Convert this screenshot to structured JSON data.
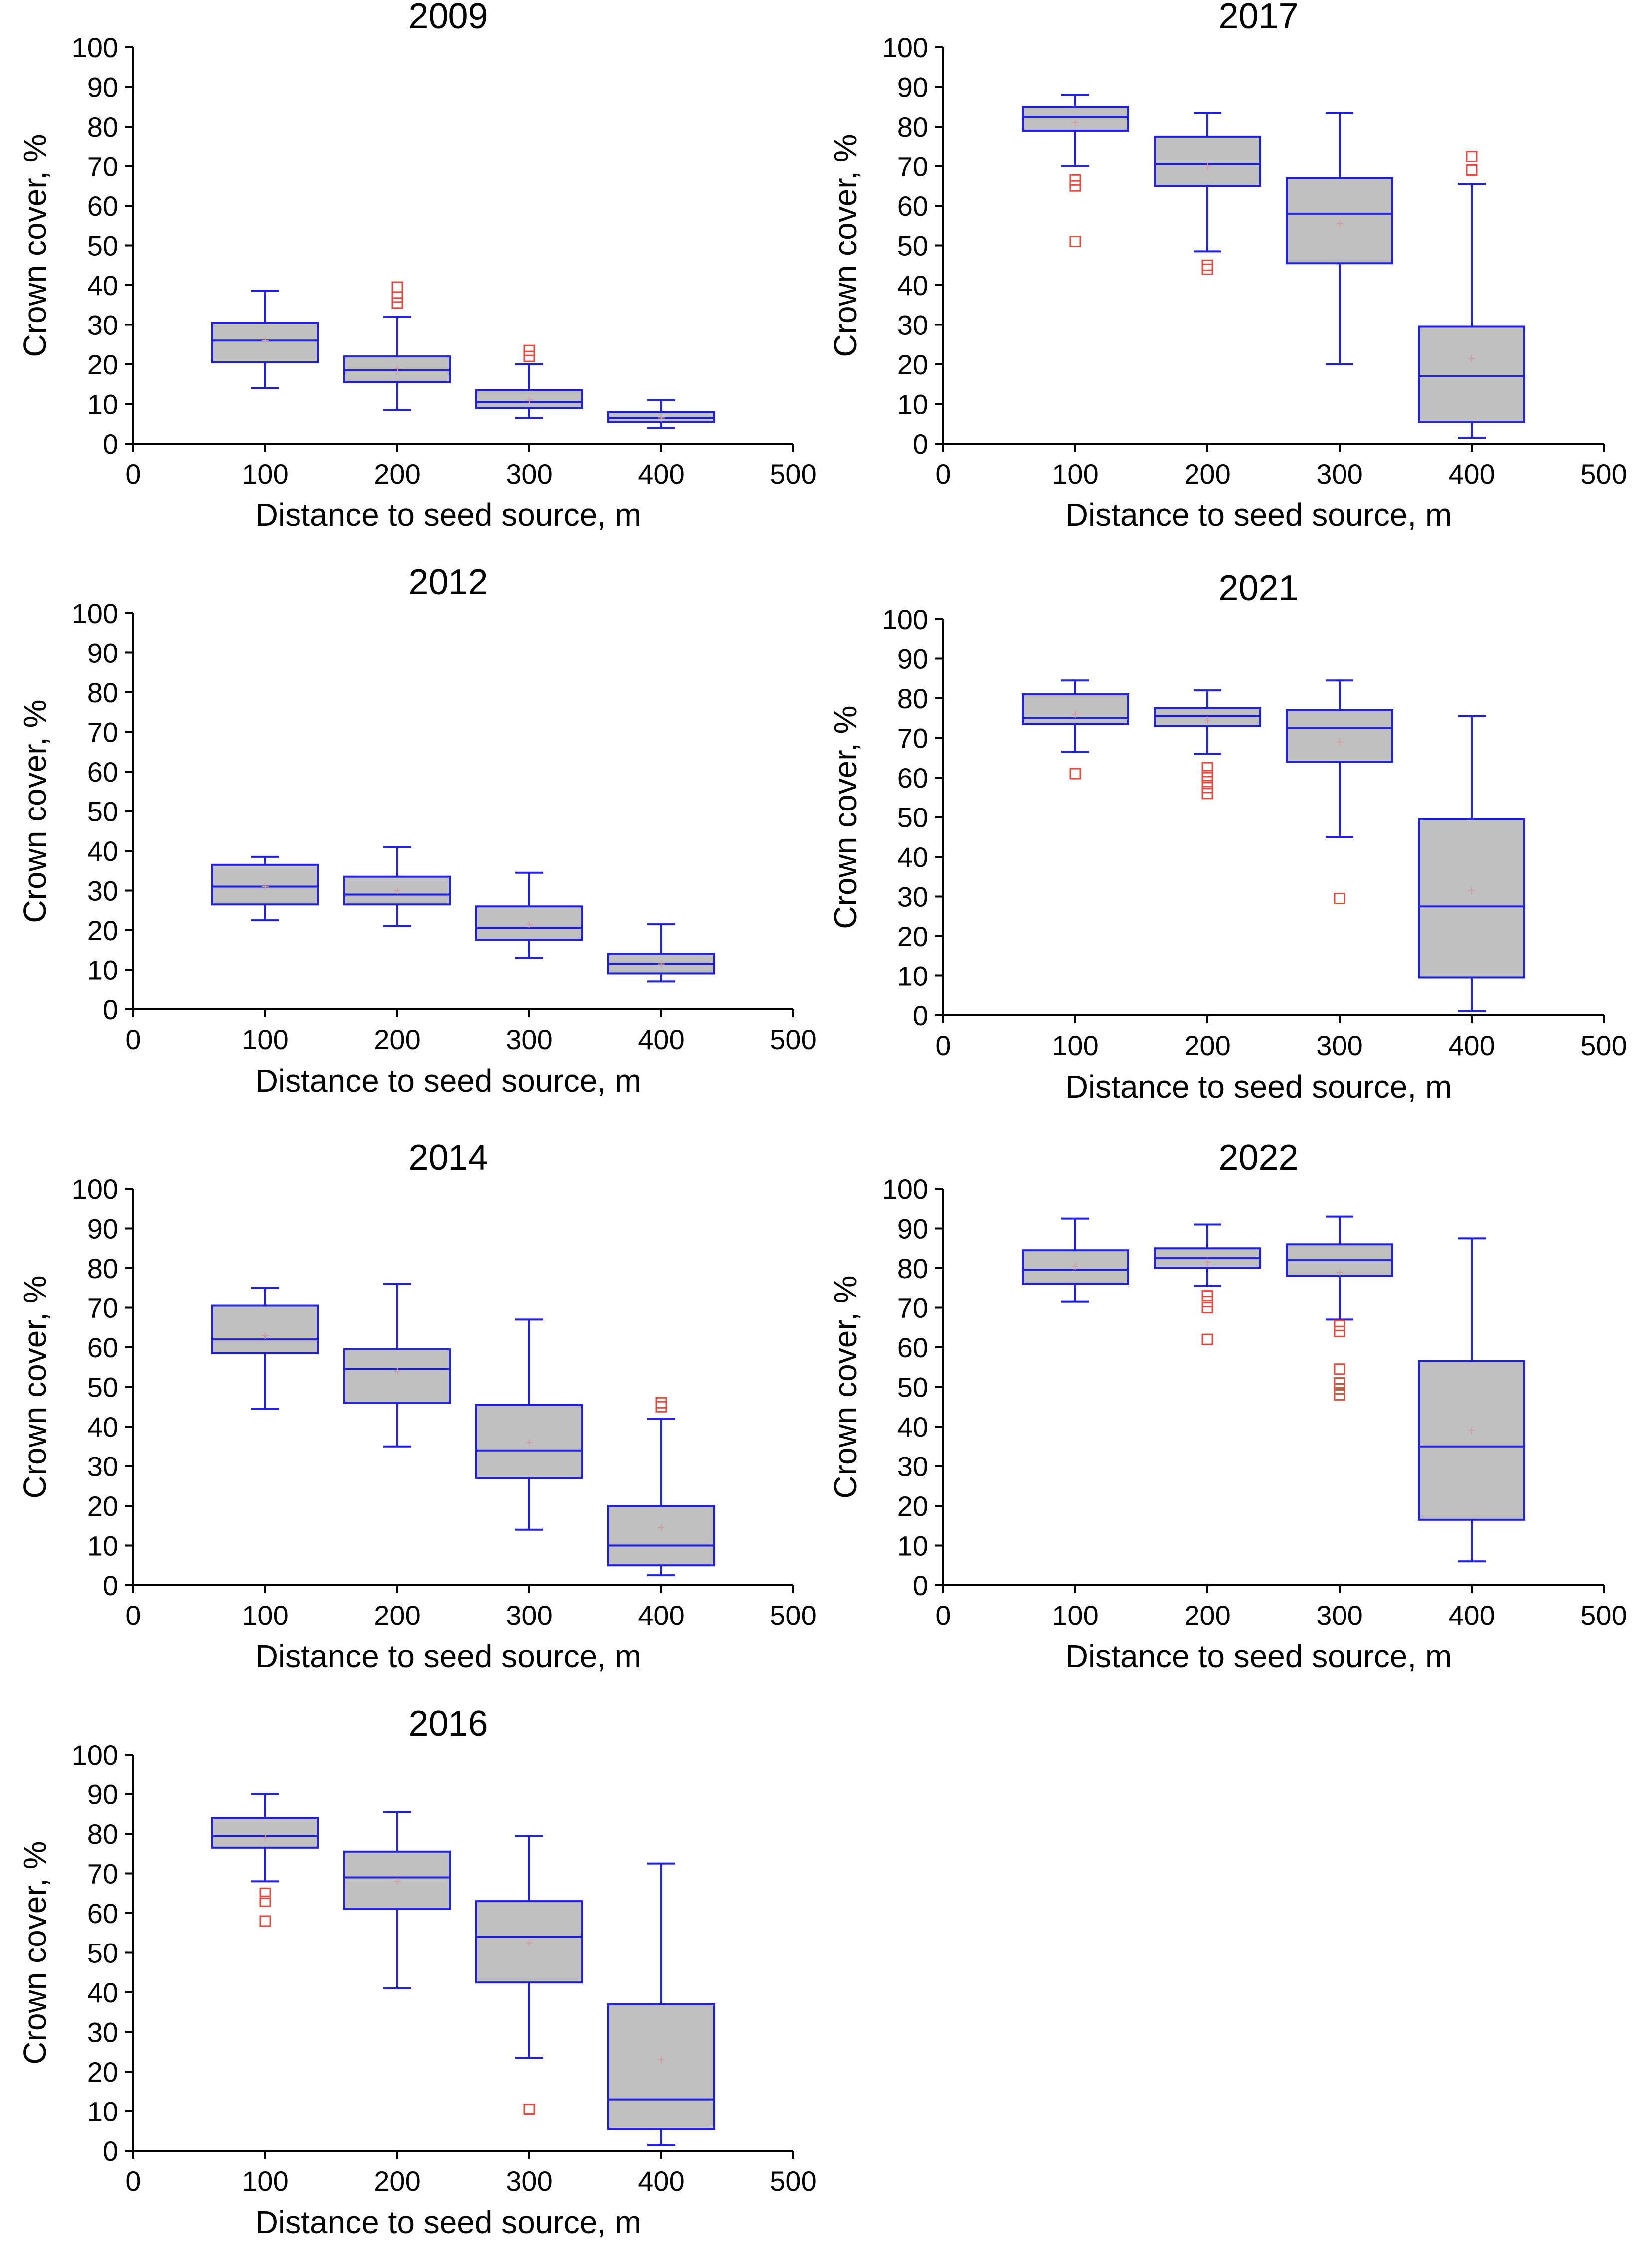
{
  "colors": {
    "box_fill": "#c0c0c0",
    "box_stroke": "#1f1fe6",
    "outlier": "#e8473c",
    "mean_marker": "#d0a0a0",
    "axis": "#000000",
    "text": "#000000"
  },
  "chart_data": [
    {
      "type": "box",
      "title": "2009",
      "xlabel": "Distance to seed source, m",
      "ylabel": "Crown cover, %",
      "xlim": [
        0,
        500
      ],
      "ylim": [
        0,
        100
      ],
      "xticks": [
        0,
        100,
        200,
        300,
        400,
        500
      ],
      "yticks": [
        0,
        10,
        20,
        30,
        40,
        50,
        60,
        70,
        80,
        90,
        100
      ],
      "grid": false,
      "boxes": [
        {
          "x": 100,
          "whisker_low": 14,
          "q1": 20.5,
          "median": 26,
          "q3": 30.5,
          "whisker_high": 38.5,
          "mean": 26,
          "outliers": []
        },
        {
          "x": 200,
          "whisker_low": 8.5,
          "q1": 15.5,
          "median": 18.5,
          "q3": 22,
          "whisker_high": 32,
          "mean": 19,
          "outliers": [
            35.5,
            37,
            39.5
          ]
        },
        {
          "x": 300,
          "whisker_low": 6.5,
          "q1": 9,
          "median": 10.5,
          "q3": 13.5,
          "whisker_high": 20,
          "mean": 11,
          "outliers": [
            22,
            23.5
          ]
        },
        {
          "x": 400,
          "whisker_low": 4,
          "q1": 5.5,
          "median": 6.5,
          "q3": 8,
          "whisker_high": 11,
          "mean": 6.5,
          "outliers": []
        }
      ]
    },
    {
      "type": "box",
      "title": "2017",
      "xlabel": "Distance to seed source, m",
      "ylabel": "Crown cover, %",
      "xlim": [
        0,
        500
      ],
      "ylim": [
        0,
        100
      ],
      "xticks": [
        0,
        100,
        200,
        300,
        400,
        500
      ],
      "yticks": [
        0,
        10,
        20,
        30,
        40,
        50,
        60,
        70,
        80,
        90,
        100
      ],
      "grid": false,
      "boxes": [
        {
          "x": 100,
          "whisker_low": 70,
          "q1": 79,
          "median": 82.5,
          "q3": 85,
          "whisker_high": 88,
          "mean": 81,
          "outliers": [
            51,
            65,
            66.5
          ]
        },
        {
          "x": 200,
          "whisker_low": 48.5,
          "q1": 65,
          "median": 70.5,
          "q3": 77.5,
          "whisker_high": 83.5,
          "mean": 70,
          "outliers": [
            44,
            45
          ]
        },
        {
          "x": 300,
          "whisker_low": 20,
          "q1": 45.5,
          "median": 58,
          "q3": 67,
          "whisker_high": 83.5,
          "mean": 55.5,
          "outliers": []
        },
        {
          "x": 400,
          "whisker_low": 1.5,
          "q1": 5.5,
          "median": 17,
          "q3": 29.5,
          "whisker_high": 65.5,
          "mean": 21.5,
          "outliers": [
            69,
            72.5
          ]
        }
      ]
    },
    {
      "type": "box",
      "title": "2012",
      "xlabel": "Distance to seed source, m",
      "ylabel": "Crown cover, %",
      "xlim": [
        0,
        500
      ],
      "ylim": [
        0,
        100
      ],
      "xticks": [
        0,
        100,
        200,
        300,
        400,
        500
      ],
      "yticks": [
        0,
        10,
        20,
        30,
        40,
        50,
        60,
        70,
        80,
        90,
        100
      ],
      "grid": false,
      "boxes": [
        {
          "x": 100,
          "whisker_low": 22.5,
          "q1": 26.5,
          "median": 31,
          "q3": 36.5,
          "whisker_high": 38.5,
          "mean": 31,
          "outliers": []
        },
        {
          "x": 200,
          "whisker_low": 21,
          "q1": 26.5,
          "median": 29,
          "q3": 33.5,
          "whisker_high": 41,
          "mean": 30,
          "outliers": []
        },
        {
          "x": 300,
          "whisker_low": 13,
          "q1": 17.5,
          "median": 20.5,
          "q3": 26,
          "whisker_high": 34.5,
          "mean": 21.5,
          "outliers": []
        },
        {
          "x": 400,
          "whisker_low": 7,
          "q1": 9,
          "median": 11.5,
          "q3": 14,
          "whisker_high": 21.5,
          "mean": 11.5,
          "outliers": []
        }
      ]
    },
    {
      "type": "box",
      "title": "2021",
      "xlabel": "Distance to seed source, m",
      "ylabel": "Crown cover, %",
      "xlim": [
        0,
        500
      ],
      "ylim": [
        0,
        100
      ],
      "xticks": [
        0,
        100,
        200,
        300,
        400,
        500
      ],
      "yticks": [
        0,
        10,
        20,
        30,
        40,
        50,
        60,
        70,
        80,
        90,
        100
      ],
      "grid": false,
      "boxes": [
        {
          "x": 100,
          "whisker_low": 66.5,
          "q1": 73.5,
          "median": 75,
          "q3": 81,
          "whisker_high": 84.5,
          "mean": 76,
          "outliers": [
            61
          ]
        },
        {
          "x": 200,
          "whisker_low": 66,
          "q1": 73,
          "median": 75.5,
          "q3": 77.5,
          "whisker_high": 82,
          "mean": 74.5,
          "outliers": [
            56,
            57.5,
            59,
            60.5,
            62.5
          ]
        },
        {
          "x": 300,
          "whisker_low": 45,
          "q1": 64,
          "median": 72.5,
          "q3": 77,
          "whisker_high": 84.5,
          "mean": 69,
          "outliers": [
            29.5
          ]
        },
        {
          "x": 400,
          "whisker_low": 1,
          "q1": 9.5,
          "median": 27.5,
          "q3": 49.5,
          "whisker_high": 75.5,
          "mean": 31.5,
          "outliers": []
        }
      ]
    },
    {
      "type": "box",
      "title": "2014",
      "xlabel": "Distance to seed source, m",
      "ylabel": "Crown cover, %",
      "xlim": [
        0,
        500
      ],
      "ylim": [
        0,
        100
      ],
      "xticks": [
        0,
        100,
        200,
        300,
        400,
        500
      ],
      "yticks": [
        0,
        10,
        20,
        30,
        40,
        50,
        60,
        70,
        80,
        90,
        100
      ],
      "grid": false,
      "boxes": [
        {
          "x": 100,
          "whisker_low": 44.5,
          "q1": 58.5,
          "median": 62,
          "q3": 70.5,
          "whisker_high": 75,
          "mean": 63,
          "outliers": []
        },
        {
          "x": 200,
          "whisker_low": 35,
          "q1": 46,
          "median": 54.5,
          "q3": 59.5,
          "whisker_high": 76,
          "mean": 54,
          "outliers": []
        },
        {
          "x": 300,
          "whisker_low": 14,
          "q1": 27,
          "median": 34,
          "q3": 45.5,
          "whisker_high": 67,
          "mean": 36,
          "outliers": []
        },
        {
          "x": 400,
          "whisker_low": 2.5,
          "q1": 5,
          "median": 10,
          "q3": 20,
          "whisker_high": 42,
          "mean": 14.5,
          "outliers": [
            45,
            46
          ]
        }
      ]
    },
    {
      "type": "box",
      "title": "2022",
      "xlabel": "Distance to seed source, m",
      "ylabel": "Crown cover, %",
      "xlim": [
        0,
        500
      ],
      "ylim": [
        0,
        100
      ],
      "xticks": [
        0,
        100,
        200,
        300,
        400,
        500
      ],
      "yticks": [
        0,
        10,
        20,
        30,
        40,
        50,
        60,
        70,
        80,
        90,
        100
      ],
      "grid": false,
      "boxes": [
        {
          "x": 100,
          "whisker_low": 71.5,
          "q1": 76,
          "median": 79.5,
          "q3": 84.5,
          "whisker_high": 92.5,
          "mean": 80.5,
          "outliers": []
        },
        {
          "x": 200,
          "whisker_low": 75.5,
          "q1": 80,
          "median": 82.5,
          "q3": 85,
          "whisker_high": 91,
          "mean": 81.5,
          "outliers": [
            62,
            70,
            71.5,
            73
          ]
        },
        {
          "x": 300,
          "whisker_low": 67,
          "q1": 78,
          "median": 82,
          "q3": 86,
          "whisker_high": 93,
          "mean": 79,
          "outliers": [
            48,
            49.5,
            51,
            54.5,
            64,
            65.5
          ]
        },
        {
          "x": 400,
          "whisker_low": 6,
          "q1": 16.5,
          "median": 35,
          "q3": 56.5,
          "whisker_high": 87.5,
          "mean": 39,
          "outliers": []
        }
      ]
    },
    {
      "type": "box",
      "title": "2016",
      "xlabel": "Distance to seed source, m",
      "ylabel": "Crown cover, %",
      "xlim": [
        0,
        500
      ],
      "ylim": [
        0,
        100
      ],
      "xticks": [
        0,
        100,
        200,
        300,
        400,
        500
      ],
      "yticks": [
        0,
        10,
        20,
        30,
        40,
        50,
        60,
        70,
        80,
        90,
        100
      ],
      "grid": false,
      "boxes": [
        {
          "x": 100,
          "whisker_low": 68,
          "q1": 76.5,
          "median": 79.5,
          "q3": 84,
          "whisker_high": 90,
          "mean": 79,
          "outliers": [
            58,
            63,
            65
          ]
        },
        {
          "x": 200,
          "whisker_low": 41,
          "q1": 61,
          "median": 69,
          "q3": 75.5,
          "whisker_high": 85.5,
          "mean": 68,
          "outliers": []
        },
        {
          "x": 300,
          "whisker_low": 23.5,
          "q1": 42.5,
          "median": 54,
          "q3": 63,
          "whisker_high": 79.5,
          "mean": 52.5,
          "outliers": [
            10.5
          ]
        },
        {
          "x": 400,
          "whisker_low": 1.5,
          "q1": 5.5,
          "median": 13,
          "q3": 37,
          "whisker_high": 72.5,
          "mean": 23,
          "outliers": []
        }
      ]
    }
  ]
}
